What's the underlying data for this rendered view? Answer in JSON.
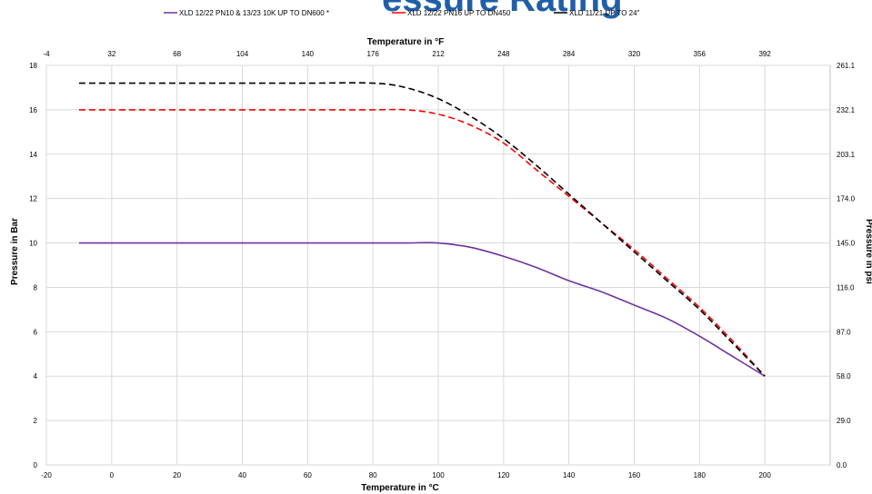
{
  "chart_data": {
    "type": "line",
    "title": "",
    "xlabel": "Temperature in °C",
    "ylabel": "Pressure in Bar",
    "x2label": "Temperature in °F",
    "y2label": "Pressure in psi",
    "xlim": [
      -20,
      220
    ],
    "ylim": [
      0,
      18
    ],
    "x_ticks": [
      -20,
      0,
      20,
      40,
      60,
      80,
      100,
      120,
      140,
      160,
      180,
      200
    ],
    "x_tick_labels": [
      "-20",
      "0",
      "20",
      "40",
      "60",
      "80",
      "100",
      "120",
      "140",
      "160",
      "180",
      "200"
    ],
    "y_ticks": [
      0,
      2,
      4,
      6,
      8,
      10,
      12,
      14,
      16,
      18
    ],
    "y_tick_labels": [
      "0",
      "2",
      "4",
      "6",
      "8",
      "10",
      "12",
      "14",
      "16",
      "18"
    ],
    "x2_tick_labels": [
      "-4",
      "32",
      "68",
      "104",
      "140",
      "176",
      "212",
      "248",
      "284",
      "320",
      "356",
      "392"
    ],
    "y2_tick_labels": [
      "0.0",
      "29.0",
      "58.0",
      "87.0",
      "116.0",
      "145.0",
      "174.0",
      "203.1",
      "232.1",
      "261.1"
    ],
    "grid": true,
    "legend_position": "top",
    "series": [
      {
        "name": "XLD 12/22  PN10 & 13/23 10K UP TO DN600 *",
        "color": "#7030a0",
        "dash": "solid",
        "x": [
          -10,
          0,
          20,
          40,
          60,
          80,
          90,
          100,
          110,
          120,
          130,
          140,
          150,
          160,
          170,
          180,
          190,
          200
        ],
        "y": [
          10,
          10,
          10,
          10,
          10,
          10,
          10,
          10,
          9.8,
          9.4,
          8.9,
          8.3,
          7.8,
          7.2,
          6.6,
          5.8,
          4.9,
          4.0
        ]
      },
      {
        "name": "XLD 12/22 PN16 UP TO DN450",
        "color": "#ff0000",
        "dash": "dashed",
        "x": [
          -10,
          0,
          20,
          40,
          60,
          80,
          90,
          100,
          110,
          120,
          130,
          140,
          150,
          160,
          170,
          180,
          190,
          200
        ],
        "y": [
          16,
          16,
          16,
          16,
          16,
          16,
          16,
          15.8,
          15.3,
          14.5,
          13.3,
          12.1,
          10.9,
          9.7,
          8.4,
          7.1,
          5.6,
          4.0
        ]
      },
      {
        "name": "XLD 11/21 UP TO 24\"",
        "color": "#000000",
        "dash": "dashed",
        "x": [
          -10,
          0,
          20,
          40,
          60,
          80,
          90,
          100,
          110,
          120,
          130,
          140,
          150,
          160,
          170,
          180,
          190,
          200
        ],
        "y": [
          17.2,
          17.2,
          17.2,
          17.2,
          17.2,
          17.2,
          17.0,
          16.5,
          15.7,
          14.7,
          13.5,
          12.2,
          10.9,
          9.6,
          8.3,
          7.0,
          5.5,
          4.0
        ]
      }
    ]
  }
}
